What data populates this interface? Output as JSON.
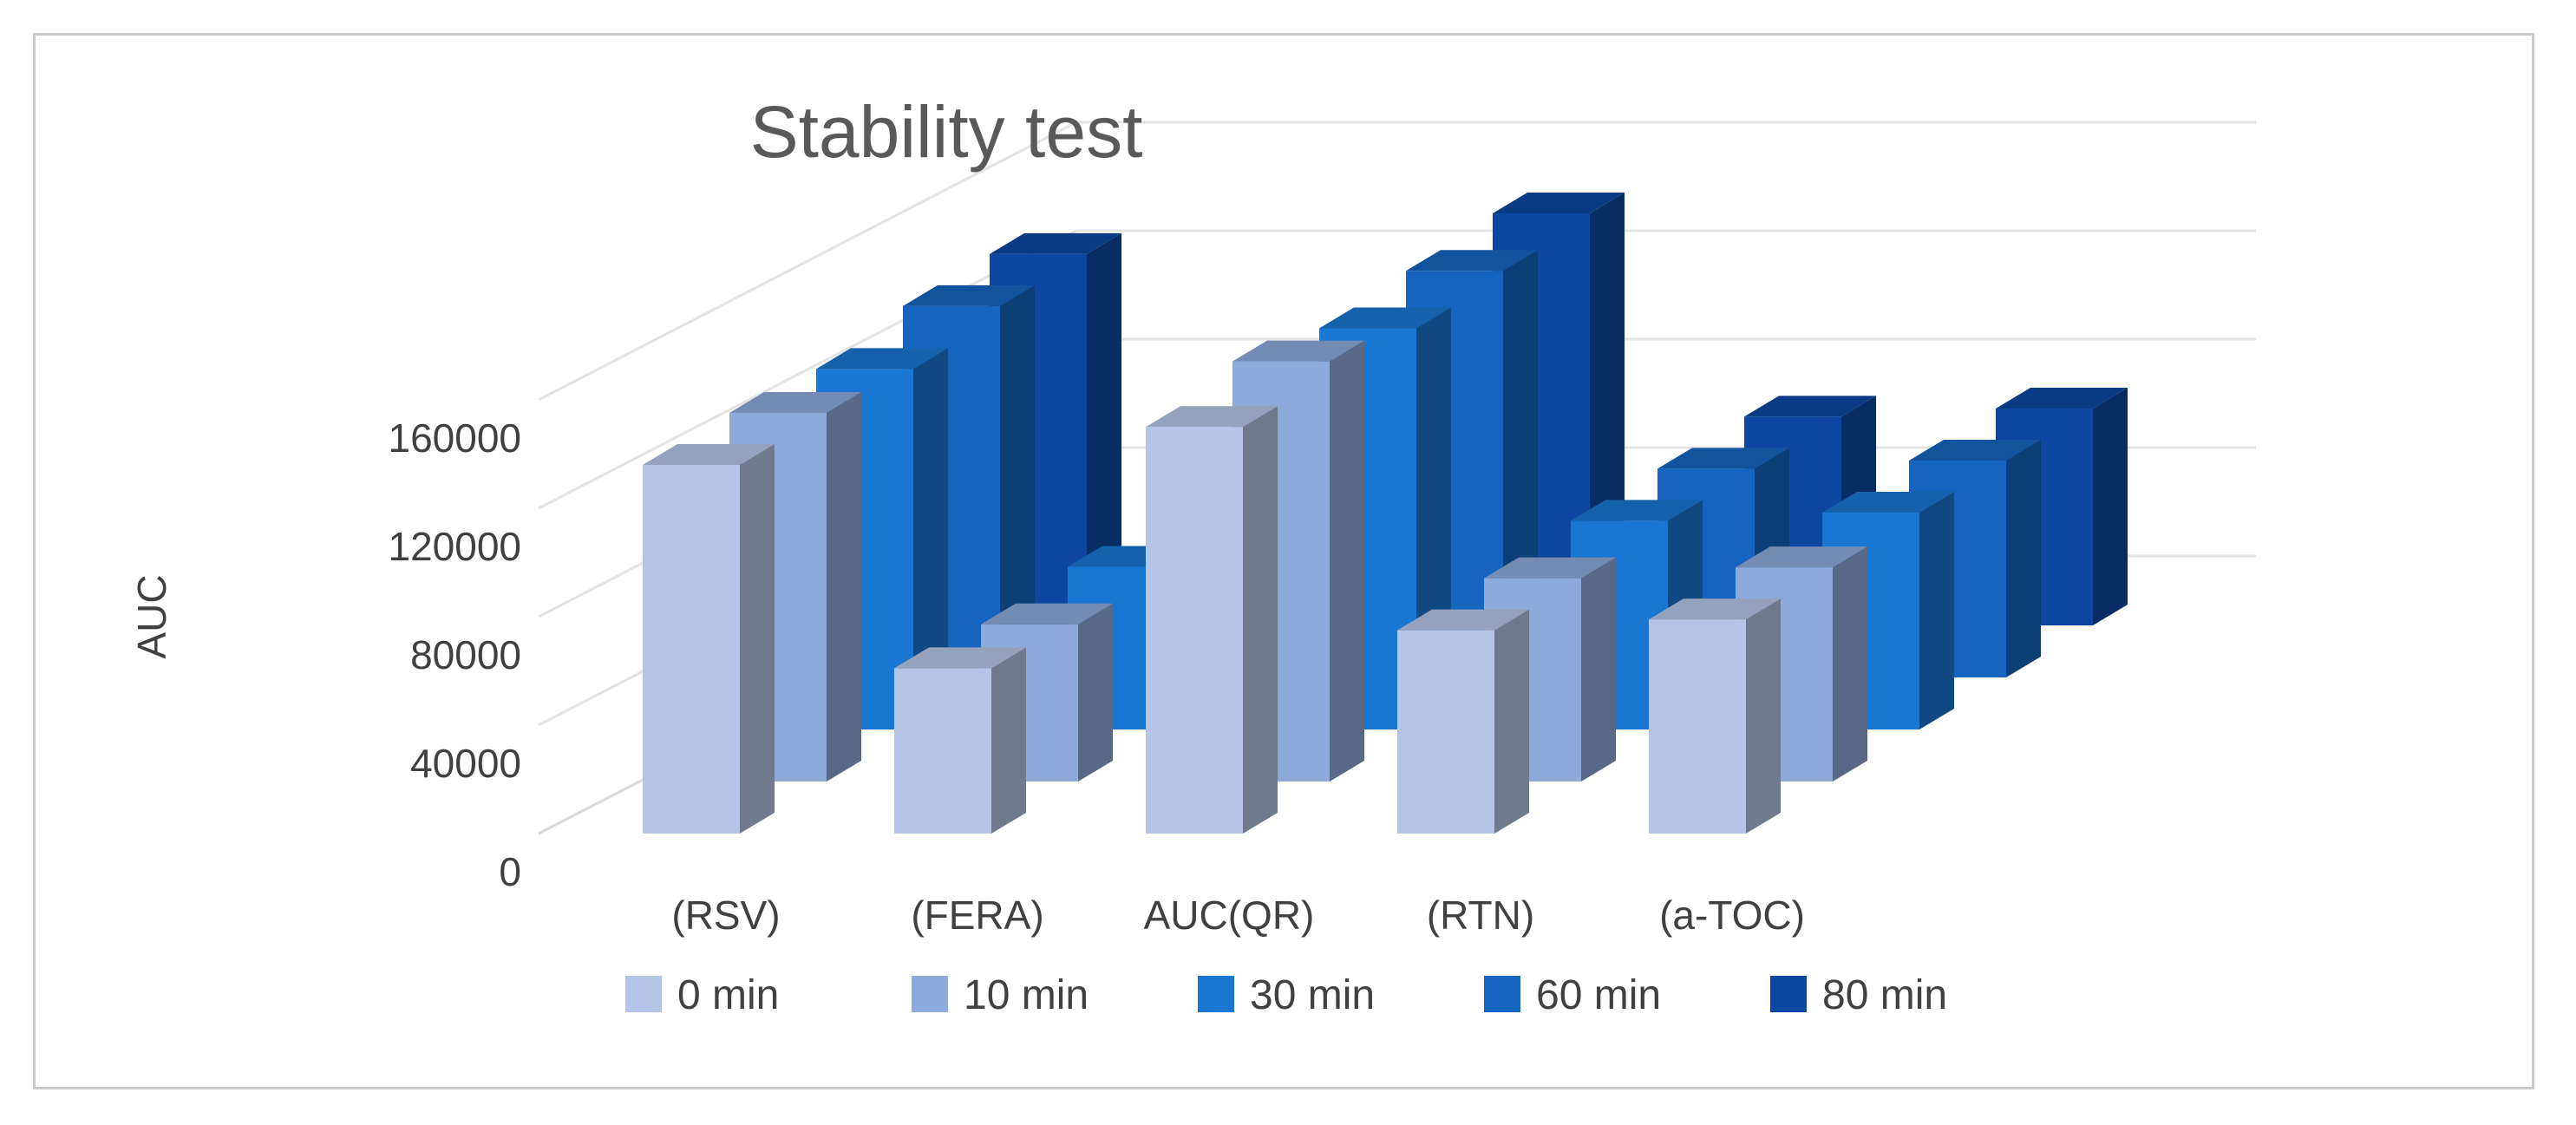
{
  "chart_data": {
    "type": "bar",
    "subtype": "3d-clustered-column",
    "title": "Stability test",
    "ylabel": "AUC",
    "xlabel": "",
    "categories": [
      "(RSV)",
      "(FERA)",
      "AUC(QR)",
      "(RTN)",
      "(a-TOC)"
    ],
    "yticks": [
      "0",
      "40000",
      "80000",
      "120000",
      "160000"
    ],
    "ylim": [
      0,
      160000
    ],
    "grid": true,
    "legend_position": "bottom",
    "series": [
      {
        "name": "0 min",
        "color": "#b4c5e7",
        "values": [
          136000,
          61000,
          150000,
          75000,
          79000
        ]
      },
      {
        "name": "10 min",
        "color": "#8eaadb",
        "values": [
          136000,
          58000,
          155000,
          75000,
          79000
        ]
      },
      {
        "name": "30 min",
        "color": "#1976d2",
        "values": [
          133000,
          60000,
          148000,
          77000,
          80000
        ]
      },
      {
        "name": "60 min",
        "color": "#1565c0",
        "values": [
          137000,
          61000,
          150000,
          77000,
          80000
        ]
      },
      {
        "name": "80 min",
        "color": "#0d47a1",
        "values": [
          137000,
          61000,
          152000,
          77000,
          80000
        ]
      }
    ]
  }
}
